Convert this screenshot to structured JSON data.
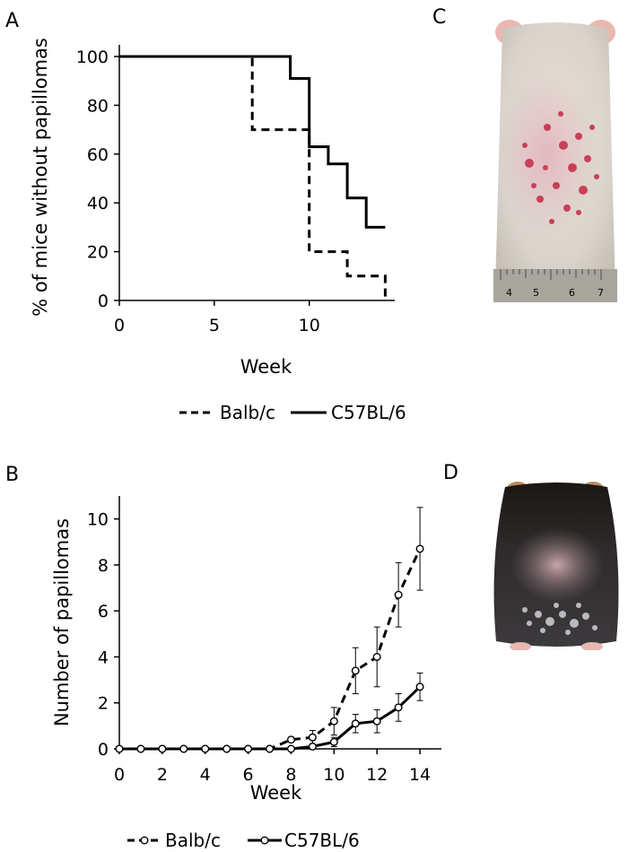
{
  "panels": {
    "A": "A",
    "B": "B",
    "C": "C",
    "D": "D"
  },
  "photo_c": {
    "ruler_labels": [
      "4",
      "5",
      "6",
      "7"
    ]
  },
  "chart_data": [
    {
      "type": "line",
      "step": true,
      "title": "",
      "xlabel": "Week",
      "ylabel": "% of mice without papillomas",
      "xlim": [
        0,
        14.5
      ],
      "ylim": [
        0,
        100
      ],
      "xticks": [
        "0",
        "5",
        "10"
      ],
      "yticks": [
        "0",
        "20",
        "40",
        "60",
        "80",
        "100"
      ],
      "legend_position": "bottom",
      "series": [
        {
          "name": "Balb/c",
          "style": "dashed",
          "points": [
            [
              0,
              100
            ],
            [
              7,
              100
            ],
            [
              7,
              70
            ],
            [
              10,
              70
            ],
            [
              10,
              20
            ],
            [
              12,
              20
            ],
            [
              12,
              10
            ],
            [
              14,
              10
            ],
            [
              14,
              0
            ]
          ]
        },
        {
          "name": "C57BL/6",
          "style": "solid",
          "points": [
            [
              0,
              100
            ],
            [
              9,
              100
            ],
            [
              9,
              91
            ],
            [
              10,
              91
            ],
            [
              10,
              63
            ],
            [
              11,
              63
            ],
            [
              11,
              56
            ],
            [
              12,
              56
            ],
            [
              12,
              42
            ],
            [
              13,
              42
            ],
            [
              13,
              30
            ],
            [
              14,
              30
            ]
          ]
        }
      ]
    },
    {
      "type": "line",
      "markers": true,
      "error_bars": true,
      "title": "",
      "xlabel": "Week",
      "ylabel": "Number of papillomas",
      "xlim": [
        0,
        15
      ],
      "ylim": [
        0,
        11
      ],
      "xticks": [
        "0",
        "2",
        "4",
        "6",
        "8",
        "10",
        "12",
        "14"
      ],
      "yticks": [
        "0",
        "2",
        "4",
        "6",
        "8",
        "10"
      ],
      "legend_position": "bottom",
      "x": [
        0,
        1,
        2,
        3,
        4,
        5,
        6,
        7,
        8,
        9,
        10,
        11,
        12,
        13,
        14
      ],
      "series": [
        {
          "name": "Balb/c",
          "style": "dashed",
          "values": [
            0,
            0,
            0,
            0,
            0,
            0,
            0,
            0,
            0.4,
            0.5,
            1.2,
            3.4,
            4.0,
            6.7,
            8.7
          ],
          "errors": [
            0,
            0,
            0,
            0,
            0,
            0,
            0,
            0,
            0.1,
            0.3,
            0.6,
            1.0,
            1.3,
            1.4,
            1.8
          ]
        },
        {
          "name": "C57BL/6",
          "style": "solid",
          "values": [
            0,
            0,
            0,
            0,
            0,
            0,
            0,
            0,
            0,
            0.1,
            0.3,
            1.1,
            1.2,
            1.8,
            2.7
          ],
          "errors": [
            0,
            0,
            0,
            0,
            0,
            0,
            0,
            0,
            0,
            0,
            0.2,
            0.4,
            0.5,
            0.6,
            0.6
          ]
        }
      ]
    }
  ]
}
